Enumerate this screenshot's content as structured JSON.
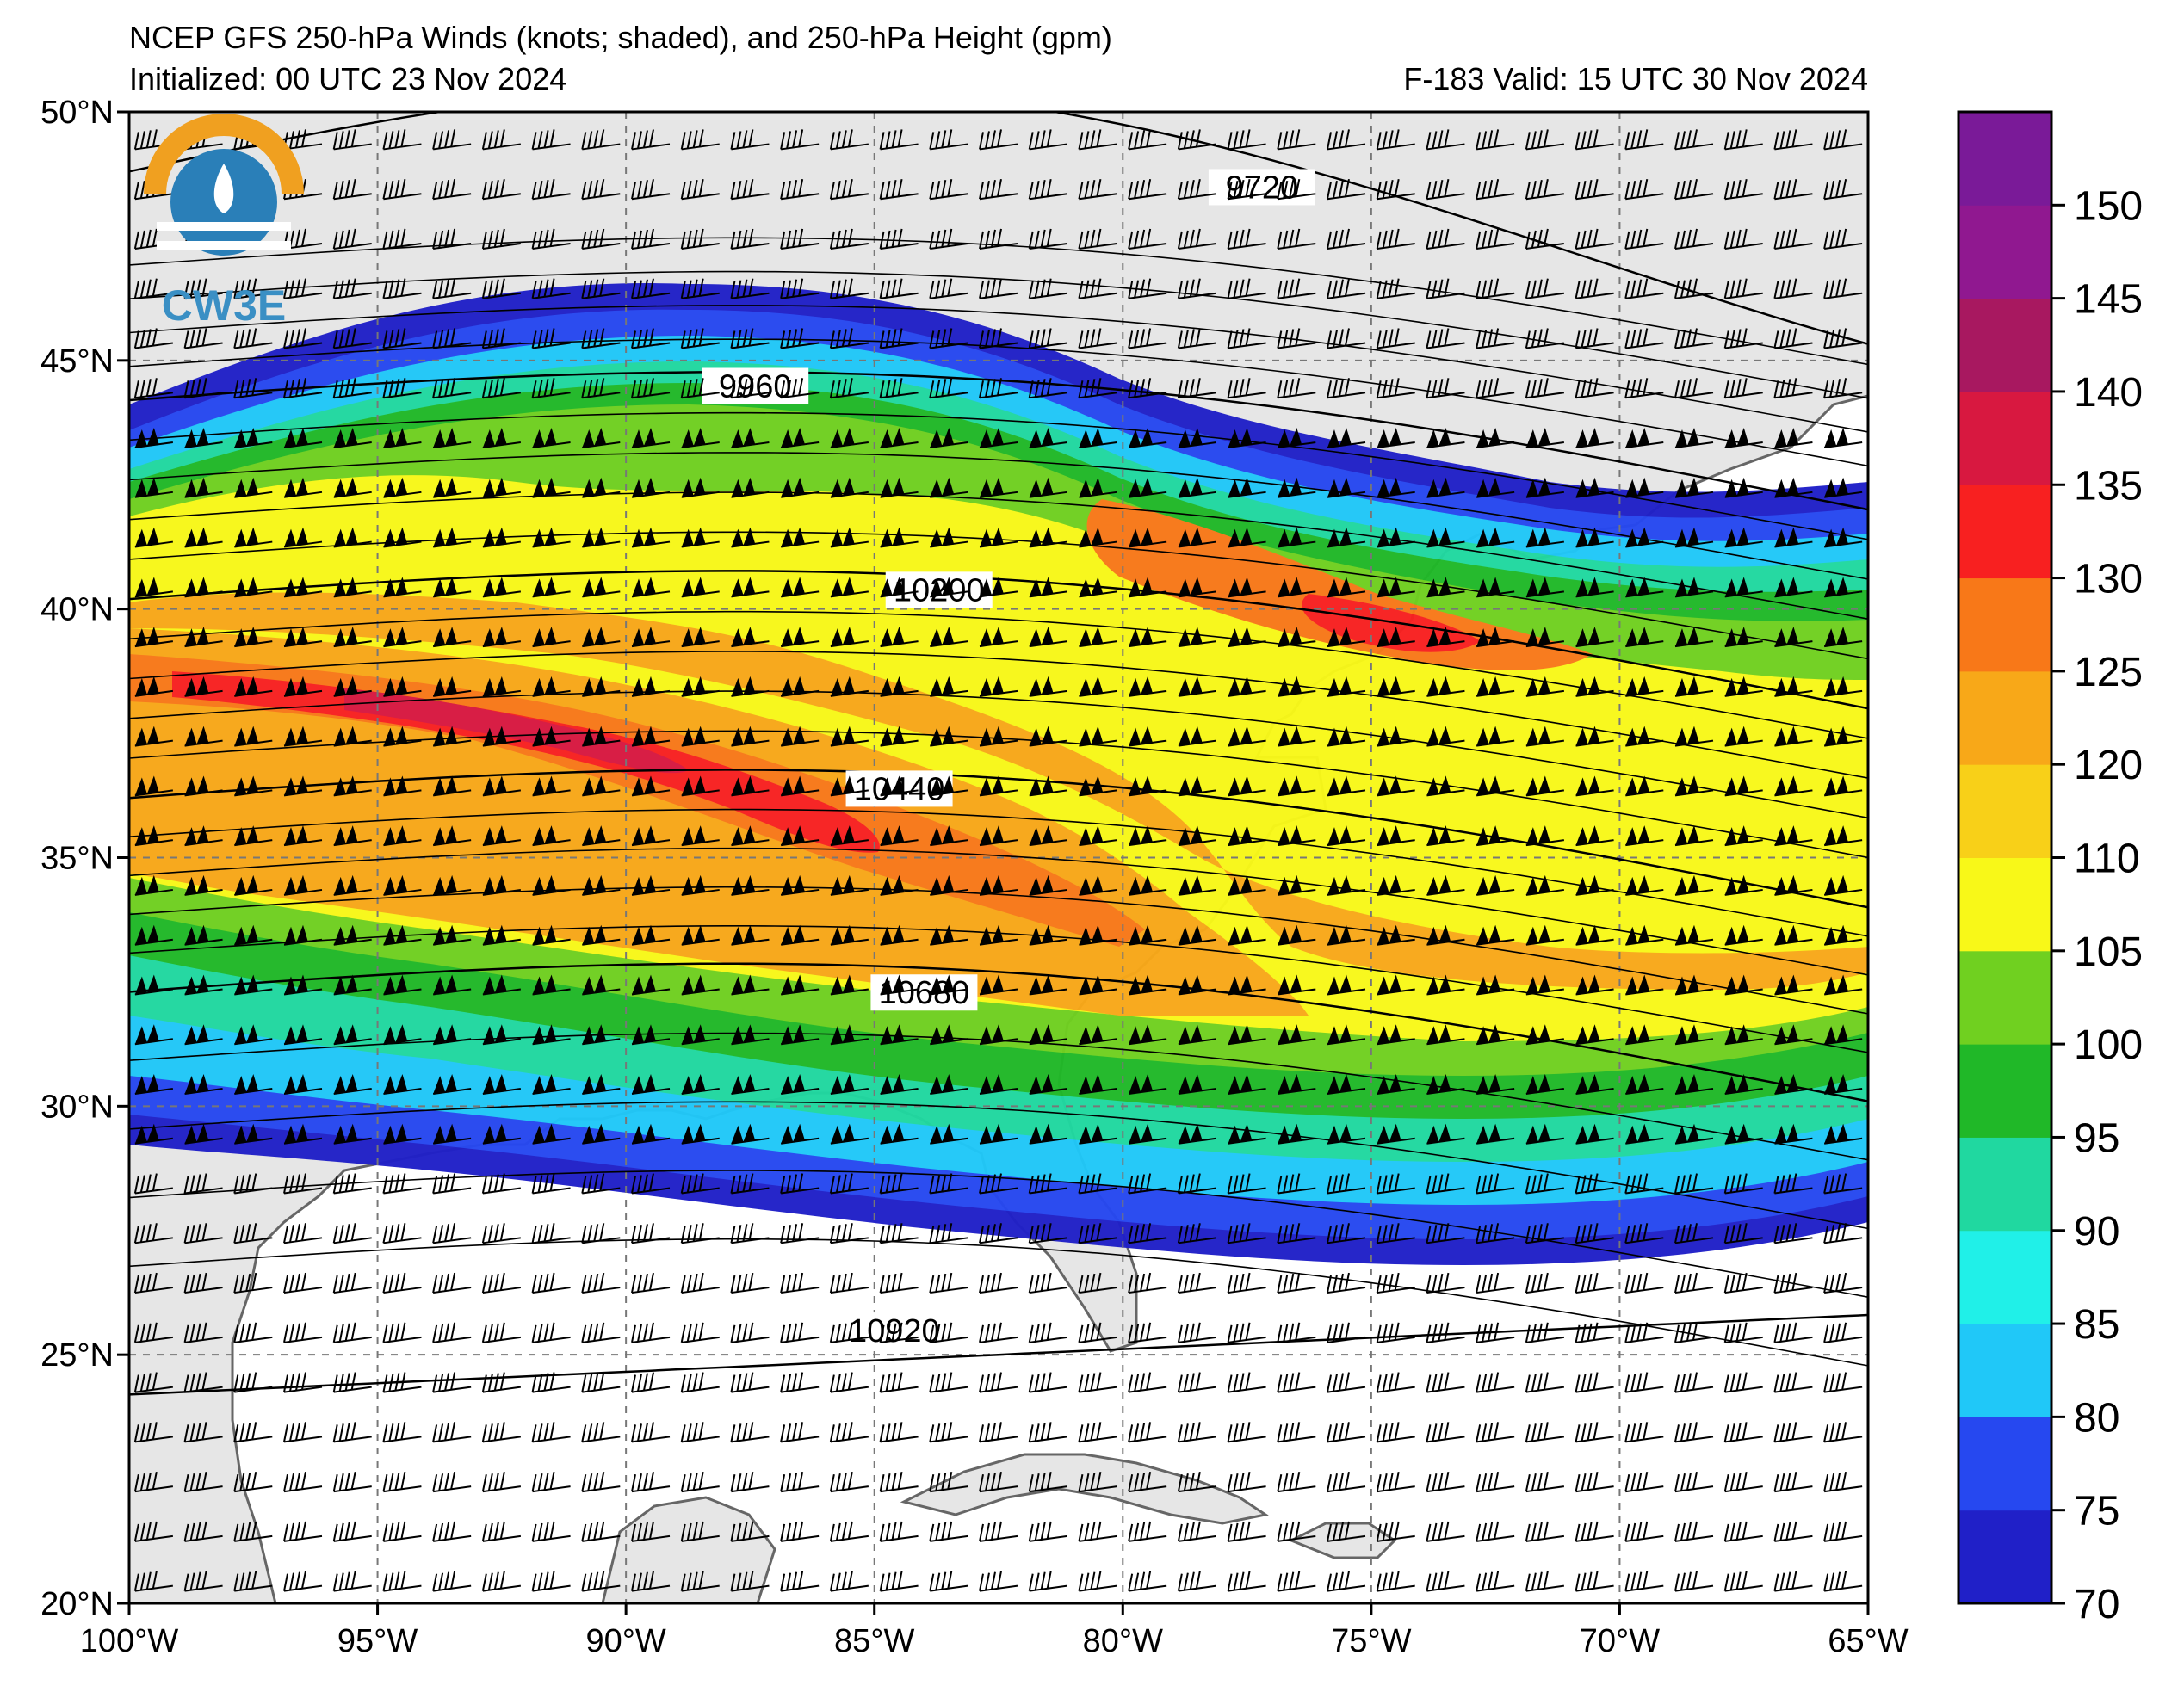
{
  "title": {
    "line1": "NCEP GFS 250-hPa Winds (knots; shaded), and 250-hPa Height (gpm)",
    "line2_left": "Initialized: 00 UTC 23 Nov 2024",
    "line2_right": "F-183  Valid: 15 UTC 30 Nov 2024"
  },
  "logo": {
    "text": "CW3E"
  },
  "map": {
    "lon_range": [
      -100,
      -65
    ],
    "lat_range": [
      20,
      50
    ],
    "lon_ticks": [
      {
        "value": -100,
        "label": "100°W"
      },
      {
        "value": -95,
        "label": "95°W"
      },
      {
        "value": -90,
        "label": "90°W"
      },
      {
        "value": -85,
        "label": "85°W"
      },
      {
        "value": -80,
        "label": "80°W"
      },
      {
        "value": -75,
        "label": "75°W"
      },
      {
        "value": -70,
        "label": "70°W"
      },
      {
        "value": -65,
        "label": "65°W"
      }
    ],
    "lat_ticks": [
      {
        "value": 50,
        "label": "50°N"
      },
      {
        "value": 45,
        "label": "45°N"
      },
      {
        "value": 40,
        "label": "40°N"
      },
      {
        "value": 35,
        "label": "35°N"
      },
      {
        "value": 30,
        "label": "30°N"
      },
      {
        "value": 25,
        "label": "25°N"
      },
      {
        "value": 20,
        "label": "20°N"
      }
    ],
    "gridlines": true,
    "height_contours": [
      {
        "value": 9720,
        "label": "9720",
        "label_lon": -77.2,
        "label_lat": 48.4
      },
      {
        "value": 9960,
        "label": "9960",
        "label_lon": -87.4,
        "label_lat": 44.4
      },
      {
        "value": 10200,
        "label": "10200",
        "label_lon": -83.7,
        "label_lat": 40.3
      },
      {
        "value": 10440,
        "label": "10440",
        "label_lon": -84.5,
        "label_lat": 36.3
      },
      {
        "value": 10680,
        "label": "10680",
        "label_lon": -84.0,
        "label_lat": 32.2
      },
      {
        "value": 10920,
        "label": "10920",
        "label_lon": -84.6,
        "label_lat": 25.4
      }
    ]
  },
  "colorbar": {
    "levels": [
      70,
      75,
      80,
      85,
      90,
      95,
      100,
      105,
      110,
      120,
      125,
      130,
      135,
      140,
      145,
      150
    ],
    "labels": [
      "70",
      "75",
      "80",
      "85",
      "90",
      "95",
      "100",
      "105",
      "110",
      "120",
      "125",
      "130",
      "135",
      "140",
      "145",
      "150"
    ],
    "colors": [
      "#2020c8",
      "#2648f0",
      "#20c8f8",
      "#20f0e8",
      "#20d8a0",
      "#20b828",
      "#70d020",
      "#f8f818",
      "#f8d018",
      "#f8a818",
      "#f87818",
      "#f82020",
      "#d81840",
      "#a81860",
      "#901890",
      "#7a1a98"
    ]
  },
  "colors": {
    "land": "#e6e6e6",
    "ocean": "#ffffff",
    "coast": "#666666"
  }
}
